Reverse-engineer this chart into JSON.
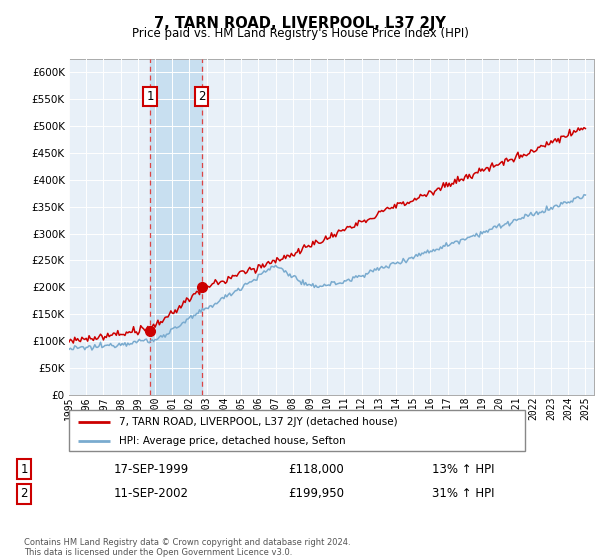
{
  "title": "7, TARN ROAD, LIVERPOOL, L37 2JY",
  "subtitle": "Price paid vs. HM Land Registry's House Price Index (HPI)",
  "ylim": [
    0,
    620000
  ],
  "yticks": [
    0,
    50000,
    100000,
    150000,
    200000,
    250000,
    300000,
    350000,
    400000,
    450000,
    500000,
    550000,
    600000
  ],
  "sale1_date": "17-SEP-1999",
  "sale1_price": 118000,
  "sale1_hpi": "13% ↑ HPI",
  "sale2_date": "11-SEP-2002",
  "sale2_price": 199950,
  "sale2_hpi": "31% ↑ HPI",
  "legend_label1": "7, TARN ROAD, LIVERPOOL, L37 2JY (detached house)",
  "legend_label2": "HPI: Average price, detached house, Sefton",
  "footer": "Contains HM Land Registry data © Crown copyright and database right 2024.\nThis data is licensed under the Open Government Licence v3.0.",
  "property_color": "#cc0000",
  "hpi_line_color": "#7aabcf",
  "chart_bg": "#e8f0f8",
  "shade_color": "#c8dff0",
  "vline_color": "#dd4444",
  "box_color": "#cc0000",
  "grid_color": "#ffffff",
  "sale1_x": 1999.708,
  "sale2_x": 2002.708,
  "xmin": 1995,
  "xmax": 2025.5
}
